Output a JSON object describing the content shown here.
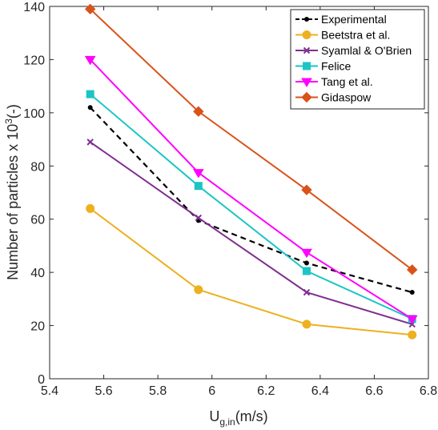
{
  "chart_data": {
    "type": "line",
    "xlabel": {
      "main": "U",
      "sub": "g,in",
      "tail": "(m/s)"
    },
    "ylabel": {
      "main": "Number of particles x 10",
      "sup": "3",
      "tail": "(-)"
    },
    "xlim": [
      5.4,
      6.8
    ],
    "ylim": [
      0,
      140
    ],
    "xticks": [
      5.4,
      5.6,
      5.8,
      6.0,
      6.2,
      6.4,
      6.6,
      6.8
    ],
    "xtick_labels": [
      "5.4",
      "5.6",
      "5.8",
      "6",
      "6.2",
      "6.4",
      "6.6",
      "6.8"
    ],
    "yticks": [
      0,
      20,
      40,
      60,
      80,
      100,
      120,
      140
    ],
    "ytick_labels": [
      "0",
      "20",
      "40",
      "60",
      "80",
      "100",
      "120",
      "140"
    ],
    "grid": false,
    "legend_position": "top-right",
    "x": [
      5.55,
      5.95,
      6.35,
      6.74
    ],
    "series": [
      {
        "name": "Experimental",
        "values": [
          102,
          59.5,
          43.5,
          32.5
        ],
        "color": "#000000",
        "marker": "dot",
        "dashed": true
      },
      {
        "name": "Beetstra et al.",
        "values": [
          64,
          33.5,
          20.5,
          16.5
        ],
        "color": "#EDB120",
        "marker": "circle",
        "dashed": false
      },
      {
        "name": "Syamlal & O'Brien",
        "values": [
          89,
          60.5,
          32.5,
          20.5
        ],
        "color": "#7E2F8E",
        "marker": "x",
        "dashed": false
      },
      {
        "name": "Felice",
        "values": [
          107,
          72.5,
          40.5,
          22.5
        ],
        "color": "#1BC5C5",
        "marker": "square",
        "dashed": false
      },
      {
        "name": "Tang et al.",
        "values": [
          120,
          77.5,
          47.5,
          22.5
        ],
        "color": "#FF00FF",
        "marker": "triangle",
        "dashed": false
      },
      {
        "name": "Gidaspow",
        "values": [
          139,
          100.5,
          71,
          41
        ],
        "color": "#D95319",
        "marker": "diamond",
        "dashed": false
      }
    ]
  }
}
